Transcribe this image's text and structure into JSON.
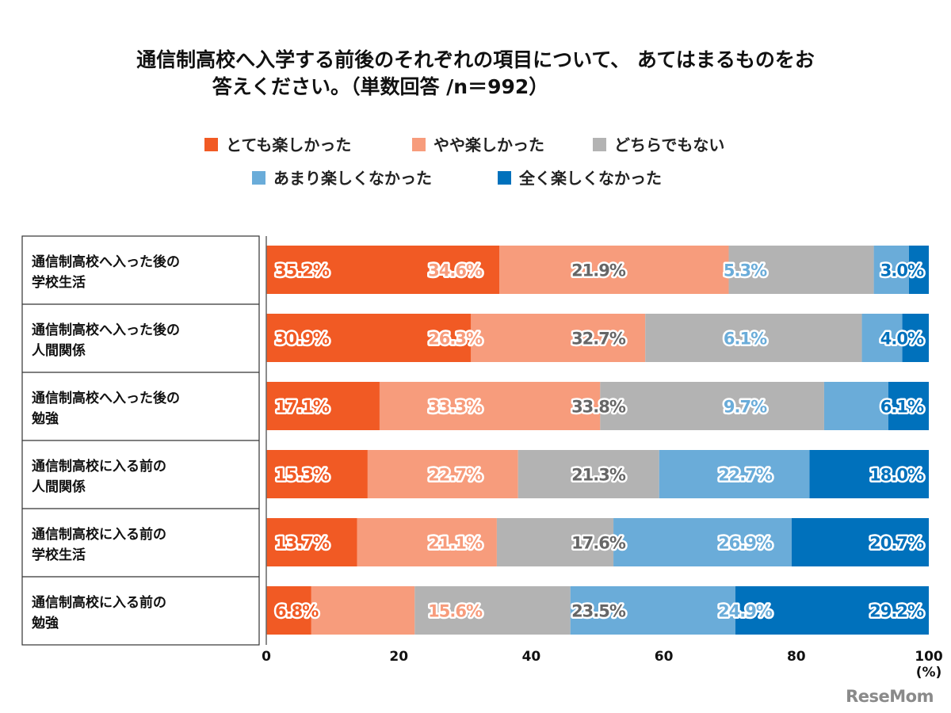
{
  "chart_data": {
    "type": "bar",
    "orientation": "horizontal",
    "stacked": true,
    "title": [
      "通信制高校へ入学する前後のそれぞれの項目について、 あてはまるものをお",
      "答えください。（単数回答 /n＝992）"
    ],
    "categories": [
      [
        "通信制高校へ入った後の",
        "学校生活"
      ],
      [
        "通信制高校へ入った後の",
        "人間関係"
      ],
      [
        "通信制高校へ入った後の",
        "勉強"
      ],
      [
        "通信制高校に入る前の",
        "人間関係"
      ],
      [
        "通信制高校に入る前の",
        "学校生活"
      ],
      [
        "通信制高校に入る前の",
        "勉強"
      ]
    ],
    "series": [
      {
        "name": "とても楽しかった",
        "color": "#F15A24",
        "label_color": "#F15A24",
        "values": [
          35.2,
          30.9,
          17.1,
          15.3,
          13.7,
          6.8
        ]
      },
      {
        "name": "やや楽しかった",
        "color": "#F79C7C",
        "label_color": "#F79C7C",
        "values": [
          34.6,
          26.3,
          33.3,
          22.7,
          21.1,
          15.6
        ]
      },
      {
        "name": "どちらでもない",
        "color": "#B3B3B3",
        "label_color": "#666666",
        "values": [
          21.9,
          32.7,
          33.8,
          21.3,
          17.6,
          23.5
        ]
      },
      {
        "name": "あまり楽しくなかった",
        "color": "#6AACD9",
        "label_color": "#6AACD9",
        "values": [
          5.3,
          6.1,
          9.7,
          22.7,
          26.9,
          24.9
        ]
      },
      {
        "name": "全く楽しくなかった",
        "color": "#0071BC",
        "label_color": "#0071BC",
        "values": [
          3.0,
          4.0,
          6.1,
          18.0,
          20.7,
          29.2
        ]
      }
    ],
    "xlim": [
      0,
      100
    ],
    "xticks": [
      "0",
      "20",
      "40",
      "60",
      "80",
      "100"
    ],
    "xunit": "(%)",
    "legend_position": "top",
    "grid": false
  },
  "logo": "ReseMom"
}
